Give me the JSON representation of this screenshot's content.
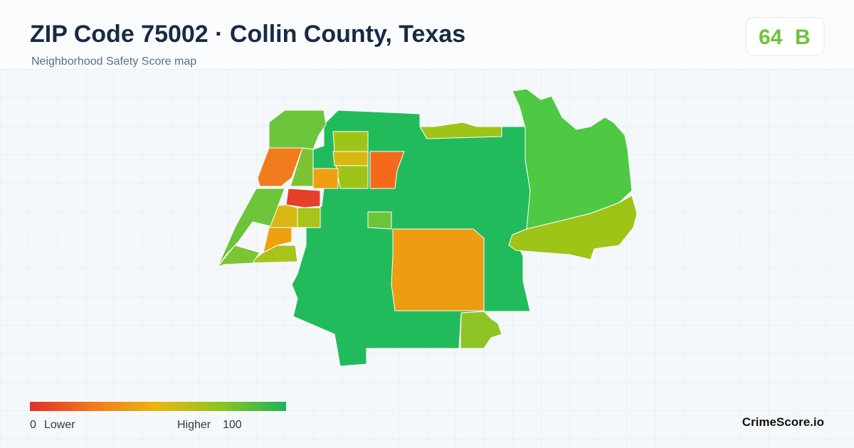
{
  "header": {
    "title": "ZIP Code 75002 · Collin County, Texas",
    "subtitle": "Neighborhood Safety Score map"
  },
  "score": {
    "value": 64,
    "grade": "B"
  },
  "legend": {
    "min": 0,
    "min_label": "Lower",
    "max_label": "Higher",
    "max": 100
  },
  "brand": "CrimeScore.io"
}
